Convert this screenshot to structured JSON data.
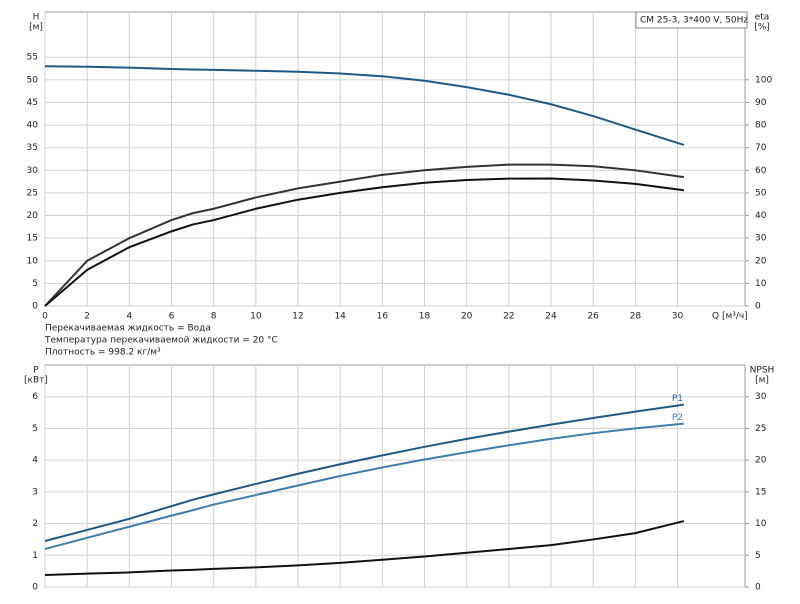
{
  "chart_data": [
    {
      "type": "line",
      "ylabel": "H",
      "yunit": "[м]",
      "y2label": "eta",
      "y2unit": "[%]",
      "xlabel": "Q [м³/ч]",
      "annotation": "CM 25-3, 3*400 V, 50Hz",
      "notes": [
        "Перекачиваемая жидкость = Вода",
        "Температура перекачиваемой жидкости = 20 °C",
        "Плотность = 998.2 кг/м³"
      ],
      "x": [
        0,
        2,
        4,
        6,
        7,
        8,
        10,
        12,
        14,
        16,
        18,
        20,
        22,
        24,
        26,
        28,
        30.3
      ],
      "xlim": [
        0,
        33.2
      ],
      "xticks": [
        0,
        2,
        4,
        6,
        8,
        10,
        12,
        14,
        16,
        18,
        20,
        22,
        24,
        26,
        28,
        30
      ],
      "ylim": [
        0,
        65
      ],
      "yticks": [
        0,
        5,
        10,
        15,
        20,
        25,
        30,
        35,
        40,
        45,
        50,
        55
      ],
      "y2lim": [
        0,
        130
      ],
      "y2ticks": [
        0,
        10,
        20,
        30,
        40,
        50,
        60,
        70,
        80,
        90,
        100
      ],
      "grid": true,
      "xtick_labels": true,
      "series": [
        {
          "color": "#1d5a87",
          "values": [
            53,
            52.9,
            52.7,
            52.4,
            52.3,
            52.2,
            52.0,
            51.8,
            51.4,
            50.8,
            49.8,
            48.4,
            46.7,
            44.6,
            42.0,
            39.0,
            35.6
          ]
        },
        {
          "color": "#333333",
          "axis": "y2",
          "values": [
            0,
            20,
            30,
            38,
            41,
            43,
            48,
            52,
            55,
            58,
            60,
            61.5,
            62.5,
            62.5,
            61.8,
            60,
            57
          ]
        },
        {
          "color": "#111111",
          "axis": "y2",
          "values": [
            0,
            16,
            26,
            33,
            36,
            38,
            43,
            47,
            50,
            52.5,
            54.5,
            55.7,
            56.3,
            56.4,
            55.5,
            54,
            51.2
          ]
        }
      ]
    },
    {
      "type": "line",
      "ylabel": "P",
      "yunit": "[кВт]",
      "y2label": "NPSH",
      "y2unit": "[м]",
      "x": [
        0,
        2,
        4,
        6,
        7,
        8,
        10,
        12,
        14,
        16,
        18,
        20,
        22,
        24,
        26,
        28,
        30.3
      ],
      "xlim": [
        0,
        33.2
      ],
      "xticks": [
        0,
        2,
        4,
        6,
        8,
        10,
        12,
        14,
        16,
        18,
        20,
        22,
        24,
        26,
        28,
        30
      ],
      "ylim": [
        0,
        7
      ],
      "yticks": [
        0,
        1,
        2,
        3,
        4,
        5,
        6
      ],
      "y2lim": [
        0,
        35
      ],
      "y2ticks": [
        0,
        5,
        10,
        15,
        20,
        25,
        30
      ],
      "grid": true,
      "xtick_labels": false,
      "series": [
        {
          "name": "P1",
          "color": "#1d5a87",
          "values": [
            1.45,
            1.8,
            2.15,
            2.55,
            2.75,
            2.92,
            3.25,
            3.57,
            3.87,
            4.15,
            4.42,
            4.67,
            4.9,
            5.12,
            5.33,
            5.53,
            5.75
          ]
        },
        {
          "name": "P2",
          "color": "#3c7fae",
          "values": [
            1.2,
            1.55,
            1.9,
            2.25,
            2.42,
            2.6,
            2.9,
            3.2,
            3.5,
            3.77,
            4.02,
            4.25,
            4.47,
            4.67,
            4.85,
            5.0,
            5.15
          ]
        },
        {
          "color": "#111111",
          "axis": "y2",
          "values": [
            1.9,
            2.1,
            2.3,
            2.6,
            2.7,
            2.85,
            3.1,
            3.4,
            3.8,
            4.3,
            4.8,
            5.4,
            6.0,
            6.6,
            7.5,
            8.5,
            10.4
          ]
        }
      ]
    }
  ]
}
